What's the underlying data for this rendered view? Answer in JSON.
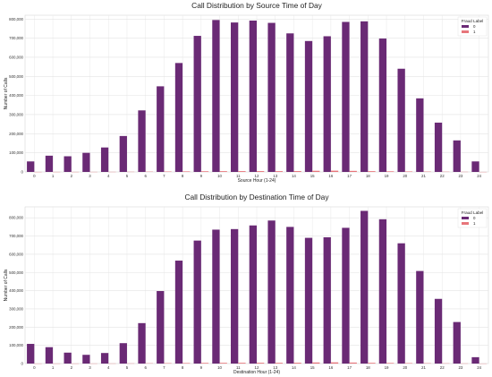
{
  "chart_data": [
    {
      "type": "bar",
      "title": "Call Distribution by Source Time of Day",
      "xlabel": "Source Hour (1-24)",
      "ylabel": "Number of Calls",
      "categories": [
        "0",
        "1",
        "2",
        "3",
        "4",
        "5",
        "6",
        "7",
        "8",
        "9",
        "10",
        "11",
        "12",
        "13",
        "14",
        "15",
        "16",
        "17",
        "18",
        "19",
        "20",
        "21",
        "22",
        "23",
        "24"
      ],
      "ylim": [
        0,
        820000
      ],
      "yticks": [
        0,
        100000,
        200000,
        300000,
        400000,
        500000,
        600000,
        700000,
        800000
      ],
      "ytick_labels": [
        "0",
        "100,000",
        "200,000",
        "300,000",
        "400,000",
        "500,000",
        "600,000",
        "700,000",
        "800,000"
      ],
      "grid": true,
      "legend": {
        "title": "Fraud Label",
        "placement": "top-right"
      },
      "series": [
        {
          "name": "0",
          "color": "#6a2a75",
          "values": [
            55000,
            85000,
            82000,
            100000,
            128000,
            188000,
            322000,
            448000,
            570000,
            712000,
            795000,
            782000,
            792000,
            780000,
            725000,
            685000,
            710000,
            785000,
            788000,
            698000,
            540000,
            385000,
            258000,
            165000,
            55000
          ]
        },
        {
          "name": "1",
          "color": "#e7757a",
          "values": [
            300,
            400,
            400,
            500,
            600,
            900,
            1500,
            2200,
            2800,
            3500,
            4000,
            4200,
            4300,
            4100,
            4500,
            6000,
            6500,
            5500,
            4000,
            3200,
            2500,
            1800,
            1200,
            800,
            300
          ]
        }
      ]
    },
    {
      "type": "bar",
      "title": "Call Distribution by Destination Time of Day",
      "xlabel": "Destination Hour (1-24)",
      "ylabel": "Number of Calls",
      "categories": [
        "0",
        "1",
        "2",
        "3",
        "4",
        "5",
        "6",
        "7",
        "8",
        "9",
        "10",
        "11",
        "12",
        "13",
        "14",
        "15",
        "16",
        "17",
        "18",
        "19",
        "20",
        "21",
        "22",
        "23",
        "24"
      ],
      "ylim": [
        0,
        860000
      ],
      "yticks": [
        0,
        100000,
        200000,
        300000,
        400000,
        500000,
        600000,
        700000,
        800000
      ],
      "ytick_labels": [
        "0",
        "100,000",
        "200,000",
        "300,000",
        "400,000",
        "500,000",
        "600,000",
        "700,000",
        "800,000"
      ],
      "grid": true,
      "legend": {
        "title": "Fraud Label",
        "placement": "top-right"
      },
      "series": [
        {
          "name": "0",
          "color": "#6a2a75",
          "values": [
            108000,
            90000,
            60000,
            48000,
            58000,
            112000,
            222000,
            398000,
            565000,
            675000,
            735000,
            738000,
            758000,
            785000,
            750000,
            690000,
            693000,
            745000,
            838000,
            792000,
            660000,
            508000,
            355000,
            228000,
            35000
          ]
        },
        {
          "name": "1",
          "color": "#e7757a",
          "values": [
            300,
            400,
            400,
            500,
            600,
            900,
            1500,
            2200,
            2800,
            3500,
            4000,
            4200,
            4300,
            4100,
            4500,
            6000,
            6500,
            5500,
            4000,
            3200,
            2500,
            1800,
            1200,
            800,
            300
          ]
        }
      ]
    }
  ]
}
